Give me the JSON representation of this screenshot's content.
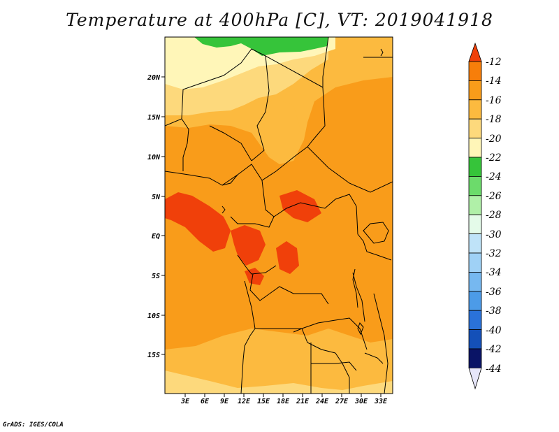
{
  "title": "Temperature at 400hPa [C], VT: 2019041918",
  "credit": "GrADS: IGES/COLA",
  "map": {
    "region": "Central Africa",
    "lon_range": [
      0,
      35
    ],
    "lat_range": [
      -20,
      25
    ],
    "lon_ticks": [
      "3E",
      "6E",
      "9E",
      "12E",
      "15E",
      "18E",
      "21E",
      "24E",
      "27E",
      "30E",
      "33E"
    ],
    "lat_ticks": [
      "20N",
      "15N",
      "10N",
      "5N",
      "EQ",
      "5S",
      "10S",
      "15S"
    ],
    "dominant_field": "-16 to -14 C over most of the domain; -18 to -22 C in the north; -24 to -22 C patch at top edge; -14 to -12 C patches near the equator"
  },
  "colorbar": {
    "labels": [
      "-12",
      "-14",
      "-16",
      "-18",
      "-20",
      "-22",
      "-24",
      "-26",
      "-28",
      "-30",
      "-32",
      "-34",
      "-36",
      "-38",
      "-40",
      "-42",
      "-44"
    ],
    "colors": {
      "c1": "#f0400a",
      "c2": "#f77e0a",
      "c3": "#f99c1a",
      "c4": "#fcba3f",
      "c5": "#fdd97c",
      "c6": "#fff6b8",
      "c7": "#36c43a",
      "c8": "#6cdb6b",
      "c9": "#b0f0a8",
      "c10": "#e4fbe9",
      "c11": "#bfe3f8",
      "c12": "#9fd1f6",
      "c13": "#76b8f0",
      "c14": "#4c9be8",
      "c15": "#2a72d9",
      "c16": "#1450b8",
      "c17": "#0d2c8a",
      "c18": "#0a1466",
      "c19": "#e6e6fa"
    }
  }
}
